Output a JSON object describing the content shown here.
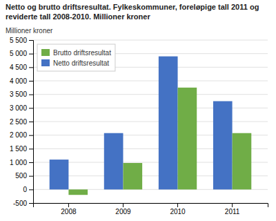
{
  "chart_data": {
    "type": "bar",
    "title": "Netto og brutto driftsresultat. Fylkeskommuner, foreløpige tall 2011 og reviderte tall 2008-2010. Millioner kroner",
    "ylabel": "Millioner kroner",
    "categories": [
      "2008",
      "2009",
      "2010",
      "2011"
    ],
    "series": [
      {
        "name": "Netto driftsresultat",
        "color": "#4472C4",
        "values": [
          1100,
          2075,
          4900,
          3250
        ]
      },
      {
        "name": "Brutto driftsresultat",
        "color": "#70AD47",
        "values": [
          -200,
          975,
          3750,
          2075
        ]
      }
    ],
    "ylim": [
      -500,
      5500
    ],
    "yticks": [
      -500,
      0,
      500,
      {
        "value": 1000,
        "label": "1 000"
      },
      {
        "value": 1500,
        "label": "1 500"
      },
      {
        "value": 2000,
        "label": "2 000"
      },
      {
        "value": 2500,
        "label": "2 500"
      },
      {
        "value": 3000,
        "label": "3 000"
      },
      {
        "value": 3500,
        "label": "3 500"
      },
      {
        "value": 4000,
        "label": "4 000"
      },
      {
        "value": 4500,
        "label": "4 500"
      },
      {
        "value": 5000,
        "label": "5 000"
      },
      {
        "value": 5500,
        "label": "5 500"
      }
    ],
    "grid": true,
    "legend": "top-left"
  }
}
